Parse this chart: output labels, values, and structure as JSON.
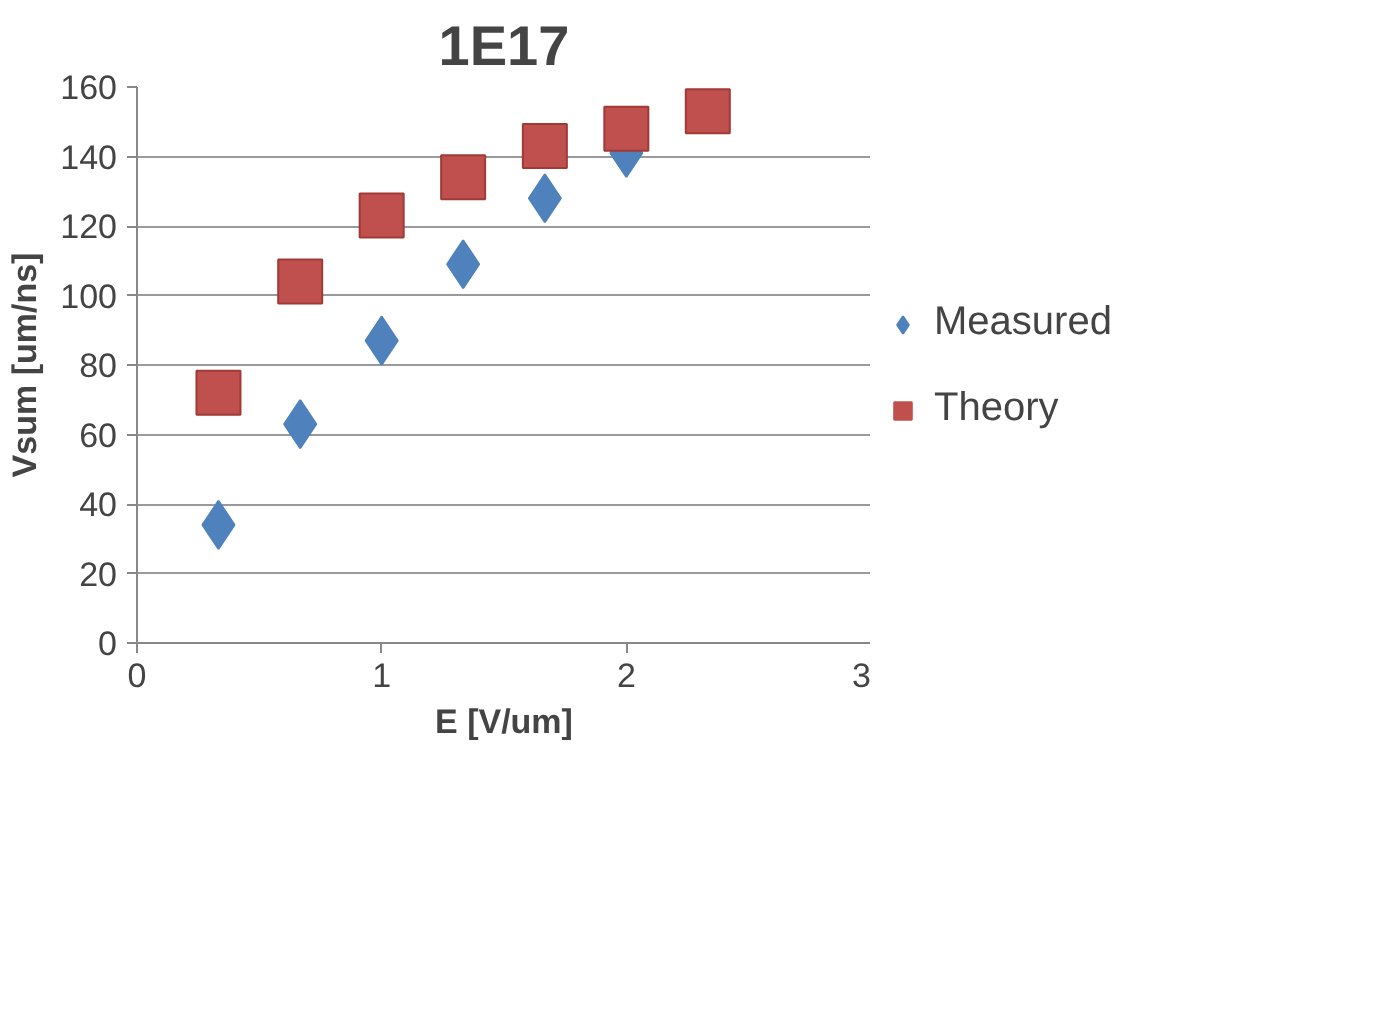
{
  "chart_data": {
    "type": "scatter",
    "title": "1E17",
    "xlabel": "E [V/um]",
    "ylabel": "Vsum [um/ns]",
    "x": [
      0.333,
      0.667,
      1.0,
      1.333,
      1.667,
      2.0,
      2.333
    ],
    "series": [
      {
        "name": "Measured",
        "color": "#4f81bd",
        "marker": "diamond",
        "values": [
          34,
          63,
          87,
          109,
          128,
          141,
          null
        ]
      },
      {
        "name": "Theory",
        "color": "#c0504d",
        "marker": "square",
        "values": [
          72,
          104,
          123,
          134,
          143,
          148,
          153
        ]
      }
    ],
    "xlim": [
      0,
      3
    ],
    "xticks": [
      0,
      1,
      2,
      3
    ],
    "ylim": [
      0,
      160
    ],
    "yticks": [
      0,
      20,
      40,
      60,
      80,
      100,
      120,
      140,
      160
    ],
    "grid": "y",
    "legend": "right"
  }
}
